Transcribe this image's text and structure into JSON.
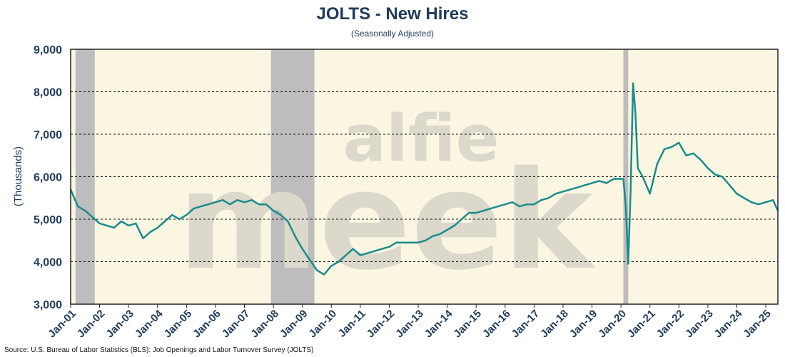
{
  "chart_data": {
    "type": "line",
    "title": "JOLTS - New Hires",
    "subtitle": "(Seasonally Adjusted)",
    "ylabel": "(Thousands)",
    "source": "Source: U.S. Bureau of Labor Statistics (BLS): Job Openings and Labor Turnover Survey (JOLTS)",
    "watermark": [
      "alfie",
      "meek"
    ],
    "ylim": [
      3000,
      9000
    ],
    "yticks": [
      3000,
      4000,
      5000,
      6000,
      7000,
      8000,
      9000
    ],
    "ytick_labels": [
      "3,000",
      "4,000",
      "5,000",
      "6,000",
      "7,000",
      "8,000",
      "9,000"
    ],
    "xlim": [
      "2001-01",
      "2025-06"
    ],
    "xtick_labels": [
      "Jan-01",
      "Jan-02",
      "Jan-03",
      "Jan-04",
      "Jan-05",
      "Jan-06",
      "Jan-07",
      "Jan-08",
      "Jan-09",
      "Jan-10",
      "Jan-11",
      "Jan-12",
      "Jan-13",
      "Jan-14",
      "Jan-15",
      "Jan-16",
      "Jan-17",
      "Jan-18",
      "Jan-19",
      "Jan-20",
      "Jan-21",
      "Jan-22",
      "Jan-23",
      "Jan-24",
      "Jan-25"
    ],
    "grid": "horizontal dashed",
    "colors": {
      "line": "#1a8c8c",
      "plot_bg": "#faf6e2",
      "recession": "#bdbdbd",
      "text": "#1f3b5a"
    },
    "recessions": [
      {
        "start": "2001-03",
        "end": "2001-11"
      },
      {
        "start": "2007-12",
        "end": "2009-06"
      },
      {
        "start": "2020-02",
        "end": "2020-04"
      }
    ],
    "series": [
      {
        "x": [
          "2001-01",
          "2001-04",
          "2001-07",
          "2001-10",
          "2002-01",
          "2002-04",
          "2002-07",
          "2002-10",
          "2003-01",
          "2003-04",
          "2003-07",
          "2003-10",
          "2004-01",
          "2004-04",
          "2004-07",
          "2004-10",
          "2005-01",
          "2005-04",
          "2005-07",
          "2005-10",
          "2006-01",
          "2006-04",
          "2006-07",
          "2006-10",
          "2007-01",
          "2007-04",
          "2007-07",
          "2007-10",
          "2008-01",
          "2008-04",
          "2008-07",
          "2008-10",
          "2009-01",
          "2009-04",
          "2009-07",
          "2009-10",
          "2010-01",
          "2010-04",
          "2010-07",
          "2010-10",
          "2011-01",
          "2011-04",
          "2011-07",
          "2011-10",
          "2012-01",
          "2012-04",
          "2012-07",
          "2012-10",
          "2013-01",
          "2013-04",
          "2013-07",
          "2013-10",
          "2014-01",
          "2014-04",
          "2014-07",
          "2014-10",
          "2015-01",
          "2015-04",
          "2015-07",
          "2015-10",
          "2016-01",
          "2016-04",
          "2016-07",
          "2016-10",
          "2017-01",
          "2017-04",
          "2017-07",
          "2017-10",
          "2018-01",
          "2018-04",
          "2018-07",
          "2018-10",
          "2019-01",
          "2019-04",
          "2019-07",
          "2019-10",
          "2020-01",
          "2020-02",
          "2020-03",
          "2020-04",
          "2020-05",
          "2020-06",
          "2020-07",
          "2020-08",
          "2020-10",
          "2021-01",
          "2021-04",
          "2021-07",
          "2021-10",
          "2022-01",
          "2022-04",
          "2022-07",
          "2022-10",
          "2023-01",
          "2023-04",
          "2023-07",
          "2023-10",
          "2024-01",
          "2024-04",
          "2024-07",
          "2024-10",
          "2025-01",
          "2025-04",
          "2025-06"
        ],
        "values": [
          5700,
          5300,
          5200,
          5050,
          4900,
          4850,
          4800,
          4950,
          4850,
          4900,
          4550,
          4700,
          4800,
          4950,
          5100,
          5000,
          5100,
          5250,
          5300,
          5350,
          5400,
          5450,
          5350,
          5450,
          5400,
          5450,
          5350,
          5350,
          5200,
          5100,
          4950,
          4600,
          4300,
          4050,
          3800,
          3700,
          3900,
          4000,
          4150,
          4300,
          4150,
          4200,
          4250,
          4300,
          4350,
          4450,
          4450,
          4450,
          4450,
          4500,
          4600,
          4650,
          4750,
          4850,
          5000,
          5150,
          5150,
          5200,
          5250,
          5300,
          5350,
          5400,
          5300,
          5350,
          5350,
          5450,
          5500,
          5600,
          5650,
          5700,
          5750,
          5800,
          5850,
          5900,
          5850,
          5950,
          5950,
          5950,
          5300,
          3950,
          5700,
          8200,
          7500,
          6200,
          6000,
          5600,
          6300,
          6650,
          6700,
          6800,
          6500,
          6550,
          6400,
          6200,
          6050,
          6000,
          5800,
          5600,
          5500,
          5400,
          5350,
          5400,
          5450,
          5200
        ]
      }
    ]
  }
}
